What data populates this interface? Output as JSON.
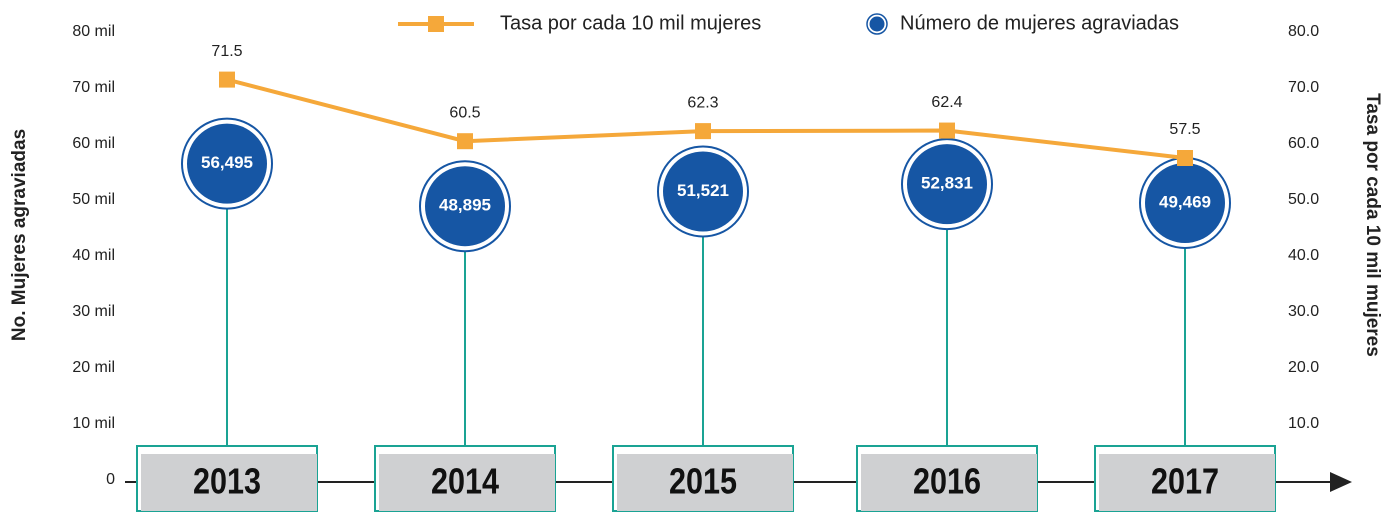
{
  "chart_data": {
    "type": "combo",
    "categories": [
      "2013",
      "2014",
      "2015",
      "2016",
      "2017"
    ],
    "ylabel": "No. Mujeres agraviadas",
    "y2label": "Tasa por cada 10 mil mujeres",
    "ylim": [
      0,
      80000
    ],
    "yticks": [
      0,
      {
        "value": 10000,
        "label": "10 mil"
      },
      {
        "value": 20000,
        "label": "20 mil"
      },
      {
        "value": 30000,
        "label": "30 mil"
      },
      {
        "value": 40000,
        "label": "40 mil"
      },
      {
        "value": 50000,
        "label": "50 mil"
      },
      {
        "value": 60000,
        "label": "60 mil"
      },
      {
        "value": 70000,
        "label": "70 mil"
      },
      {
        "value": 80000,
        "label": "80 mil"
      }
    ],
    "y2lim": [
      0,
      80
    ],
    "y2ticks": [
      {
        "value": 10,
        "label": "10.0"
      },
      {
        "value": 20,
        "label": "20.0"
      },
      {
        "value": 30,
        "label": "30.0"
      },
      {
        "value": 40,
        "label": "40.0"
      },
      {
        "value": 50,
        "label": "50.0"
      },
      {
        "value": 60,
        "label": "60.0"
      },
      {
        "value": 70,
        "label": "70.0"
      },
      {
        "value": 80,
        "label": "80.0"
      }
    ],
    "grid": false,
    "legend": "top",
    "series": [
      {
        "name": "Número de mujeres agraviadas",
        "type": "bubble",
        "color": "#1656a4",
        "values": [
          56495,
          48895,
          51521,
          52831,
          49469
        ],
        "value_labels": [
          "56,495",
          "48,895",
          "51,521",
          "52,831",
          "49,469"
        ]
      },
      {
        "name": "Tasa por cada 10 mil mujeres",
        "type": "line",
        "axis": "y2",
        "color": "#f5a83a",
        "values": [
          71.5,
          60.5,
          62.3,
          62.4,
          57.5
        ]
      }
    ]
  }
}
